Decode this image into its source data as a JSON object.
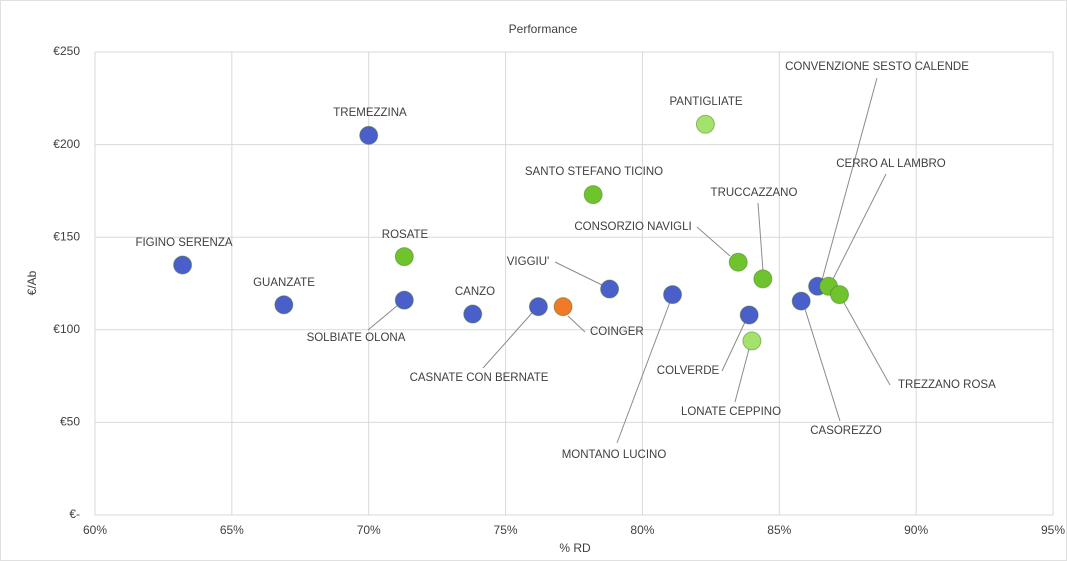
{
  "chart_data": {
    "type": "scatter",
    "title": "Performance",
    "x_label": "% RD",
    "y_label": "€/Ab",
    "labels": [
      "FIGINO SERENZA",
      "GUANZATE",
      "TREMEZZINA",
      "ROSATE",
      "SOLBIATE OLONA",
      "CANZO",
      "CASNATE CON BERNATE",
      "COINGER",
      "SANTO STEFANO TICINO",
      "VIGGIU'",
      "MONTANO LUCINO",
      "PANTIGLIATE",
      "CONSORZIO NAVIGLI",
      "COLVERDE",
      "LONATE CEPPINO",
      "TRUCCAZZANO",
      "CASOREZZO",
      "CONVENZIONE SESTO CALENDE",
      "CERRO AL LAMBRO",
      "TREZZANO ROSA"
    ],
    "x": [
      63.2,
      66.9,
      70.0,
      71.3,
      71.3,
      73.8,
      76.2,
      77.1,
      78.2,
      78.8,
      81.1,
      82.3,
      83.5,
      83.9,
      84.0,
      84.4,
      85.8,
      86.4,
      86.8,
      87.2
    ],
    "values": [
      135,
      113.5,
      205,
      139.5,
      116,
      108.5,
      112.5,
      112.5,
      173,
      122,
      119,
      211,
      136.5,
      108,
      94,
      127.5,
      115.5,
      123.5,
      123.5,
      119
    ],
    "colors": [
      "#4a5fc9",
      "#4a5fc9",
      "#4a5fc9",
      "#6fc42e",
      "#4a5fc9",
      "#4a5fc9",
      "#4a5fc9",
      "#f07a2a",
      "#6fc42e",
      "#4a5fc9",
      "#4a5fc9",
      "#a3e26b",
      "#6fc42e",
      "#4a5fc9",
      "#a3e26b",
      "#6fc42e",
      "#4a5fc9",
      "#4a5fc9",
      "#6fc42e",
      "#6fc42e"
    ],
    "xlim": [
      60,
      95
    ],
    "xticks": [
      {
        "value": 60,
        "label": "60%"
      },
      {
        "value": 65,
        "label": "65%"
      },
      {
        "value": 70,
        "label": "70%"
      },
      {
        "value": 75,
        "label": "75%"
      },
      {
        "value": 80,
        "label": "80%"
      },
      {
        "value": 85,
        "label": "85%"
      },
      {
        "value": 90,
        "label": "90%"
      },
      {
        "value": 95,
        "label": "95%"
      }
    ],
    "ylim": [
      0,
      250
    ],
    "yticks": [
      {
        "value": 0,
        "label": "€-"
      },
      {
        "value": 50,
        "label": "€50"
      },
      {
        "value": 100,
        "label": "€100"
      },
      {
        "value": 150,
        "label": "€150"
      },
      {
        "value": 200,
        "label": "€200"
      },
      {
        "value": 250,
        "label": "€250"
      }
    ],
    "grid": true
  }
}
